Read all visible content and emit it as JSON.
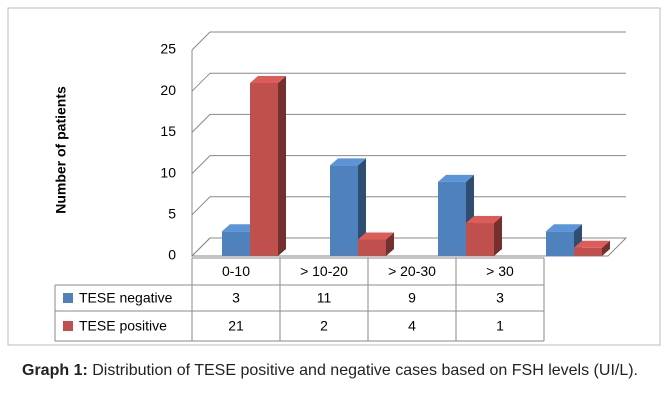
{
  "chart_data": {
    "type": "bar3d",
    "y_label": "Number of patients",
    "categories": [
      "0-10",
      "> 10-20",
      "> 20-30",
      "> 30"
    ],
    "series": [
      {
        "name": "TESE negative",
        "color": "#4f81bd",
        "values": [
          3,
          11,
          9,
          3
        ]
      },
      {
        "name": "TESE positive",
        "color": "#c0504d",
        "values": [
          21,
          2,
          4,
          1
        ]
      }
    ],
    "ylim": [
      0,
      25
    ],
    "yticks": [
      0,
      5,
      10,
      15,
      20,
      25
    ],
    "grid": true,
    "data_table": true
  },
  "caption": {
    "label": "Graph 1:",
    "text": "Distribution of TESE positive and negative cases based on FSH levels (UI/L)."
  }
}
